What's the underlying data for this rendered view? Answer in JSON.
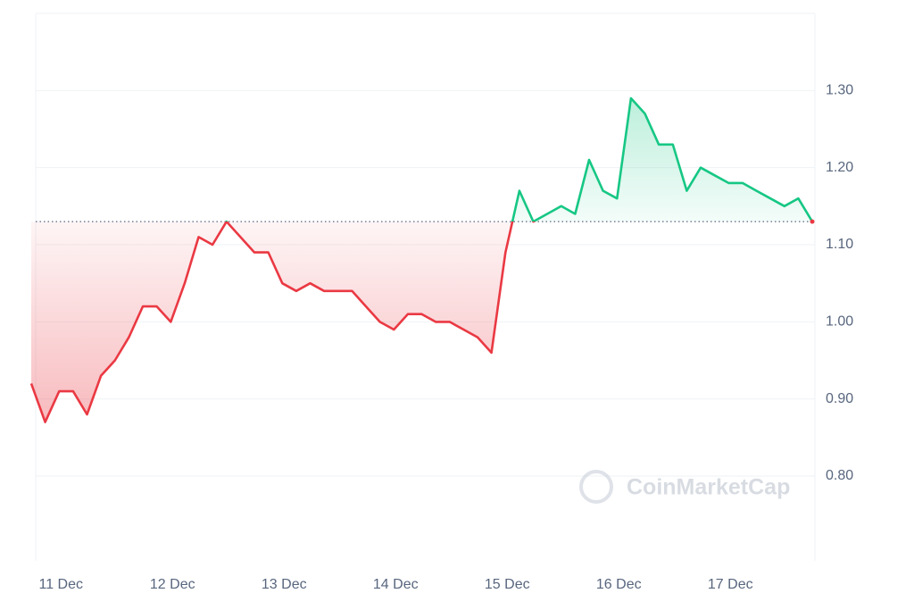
{
  "chart_data": {
    "type": "line",
    "categories": [
      null,
      null,
      "11 Dec",
      null,
      null,
      null,
      null,
      null,
      null,
      null,
      "12 Dec",
      null,
      null,
      null,
      null,
      null,
      null,
      null,
      "13 Dec",
      null,
      null,
      null,
      null,
      null,
      null,
      null,
      "14 Dec",
      null,
      null,
      null,
      null,
      null,
      null,
      null,
      "15 Dec",
      null,
      null,
      null,
      null,
      null,
      null,
      null,
      "16 Dec",
      null,
      null,
      null,
      null,
      null,
      null,
      null,
      "17 Dec",
      null,
      null,
      null,
      null,
      null,
      null
    ],
    "values": [
      0.92,
      0.87,
      0.91,
      0.91,
      0.88,
      0.93,
      0.95,
      0.98,
      1.02,
      1.02,
      1.0,
      1.05,
      1.11,
      1.1,
      1.13,
      1.11,
      1.09,
      1.09,
      1.05,
      1.04,
      1.05,
      1.04,
      1.04,
      1.04,
      1.02,
      1.0,
      0.99,
      1.01,
      1.01,
      1.0,
      1.0,
      0.99,
      0.98,
      0.96,
      1.09,
      1.17,
      1.13,
      1.14,
      1.15,
      1.14,
      1.21,
      1.17,
      1.16,
      1.29,
      1.27,
      1.23,
      1.23,
      1.17,
      1.2,
      1.19,
      1.18,
      1.18,
      1.17,
      1.16,
      1.15,
      1.16,
      1.13
    ],
    "baseline": 1.13,
    "up_color": "#16c784",
    "down_color": "#ea3943",
    "ylim": [
      0.69,
      1.4
    ],
    "yticks": [
      {
        "value": 0.8,
        "label": "0.80"
      },
      {
        "value": 0.9,
        "label": "0.90"
      },
      {
        "value": 1.0,
        "label": "1.00"
      },
      {
        "value": 1.1,
        "label": "1.10"
      },
      {
        "value": 1.2,
        "label": "1.20"
      },
      {
        "value": 1.3,
        "label": "1.30"
      }
    ],
    "grid": true,
    "watermark": "CoinMarketCap"
  }
}
